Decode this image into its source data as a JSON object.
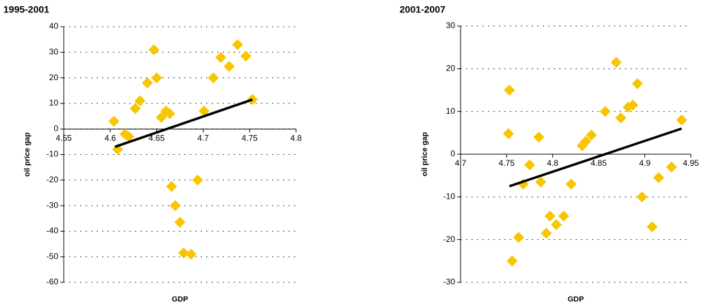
{
  "chart_data": [
    {
      "type": "scatter",
      "title": "1995-2001",
      "x_label": "GDP",
      "y_label": "oil price gap",
      "color": "#f7c600",
      "grid": true,
      "xlim": [
        4.55,
        4.8
      ],
      "xticks": [
        4.55,
        4.6,
        4.65,
        4.7,
        4.75,
        4.8
      ],
      "ylim": [
        -60,
        40
      ],
      "yticks": [
        -60,
        -50,
        -40,
        -30,
        -20,
        -10,
        0,
        10,
        20,
        30,
        40
      ],
      "x": [
        4.604,
        4.608,
        4.616,
        4.62,
        4.627,
        4.632,
        4.64,
        4.647,
        4.65,
        4.655,
        4.66,
        4.664,
        4.666,
        4.67,
        4.675,
        4.679,
        4.687,
        4.694,
        4.701,
        4.711,
        4.719,
        4.728,
        4.737,
        4.746,
        4.753
      ],
      "values": [
        3,
        -8,
        -2,
        -3,
        8,
        11,
        18,
        31,
        20,
        4.5,
        7,
        6,
        -22.5,
        -30,
        -36.5,
        -48.5,
        -49,
        -20,
        7,
        20,
        28,
        24.5,
        33,
        28.5,
        11.5
      ],
      "trendline": {
        "x": [
          4.605,
          4.753
        ],
        "values": [
          -7,
          11.5
        ],
        "color": "#000000"
      }
    },
    {
      "type": "scatter",
      "title": "2001-2007",
      "x_label": "GDP",
      "y_label": "oil price gap",
      "color": "#f7c600",
      "grid": true,
      "xlim": [
        4.7,
        4.95
      ],
      "xticks": [
        4.7,
        4.75,
        4.8,
        4.85,
        4.9,
        4.95
      ],
      "ylim": [
        -30,
        30
      ],
      "yticks": [
        -30,
        -20,
        -10,
        0,
        10,
        20,
        30
      ],
      "x": [
        4.753,
        4.752,
        4.768,
        4.775,
        4.763,
        4.756,
        4.785,
        4.787,
        4.793,
        4.797,
        4.804,
        4.812,
        4.82,
        4.832,
        4.836,
        4.842,
        4.857,
        4.869,
        4.874,
        4.882,
        4.887,
        4.892,
        4.897,
        4.908,
        4.915,
        4.929,
        4.94
      ],
      "values": [
        15,
        4.8,
        -7,
        -2.5,
        -19.5,
        -25,
        4,
        -6.5,
        -18.5,
        -14.5,
        -16.5,
        -14.5,
        -7,
        2,
        3,
        4.5,
        10,
        21.5,
        8.5,
        11,
        11.5,
        16.5,
        -10,
        -17,
        -5.5,
        -3,
        8
      ],
      "trendline": {
        "x": [
          4.753,
          4.94
        ],
        "values": [
          -7.5,
          6
        ],
        "color": "#000000"
      }
    }
  ]
}
